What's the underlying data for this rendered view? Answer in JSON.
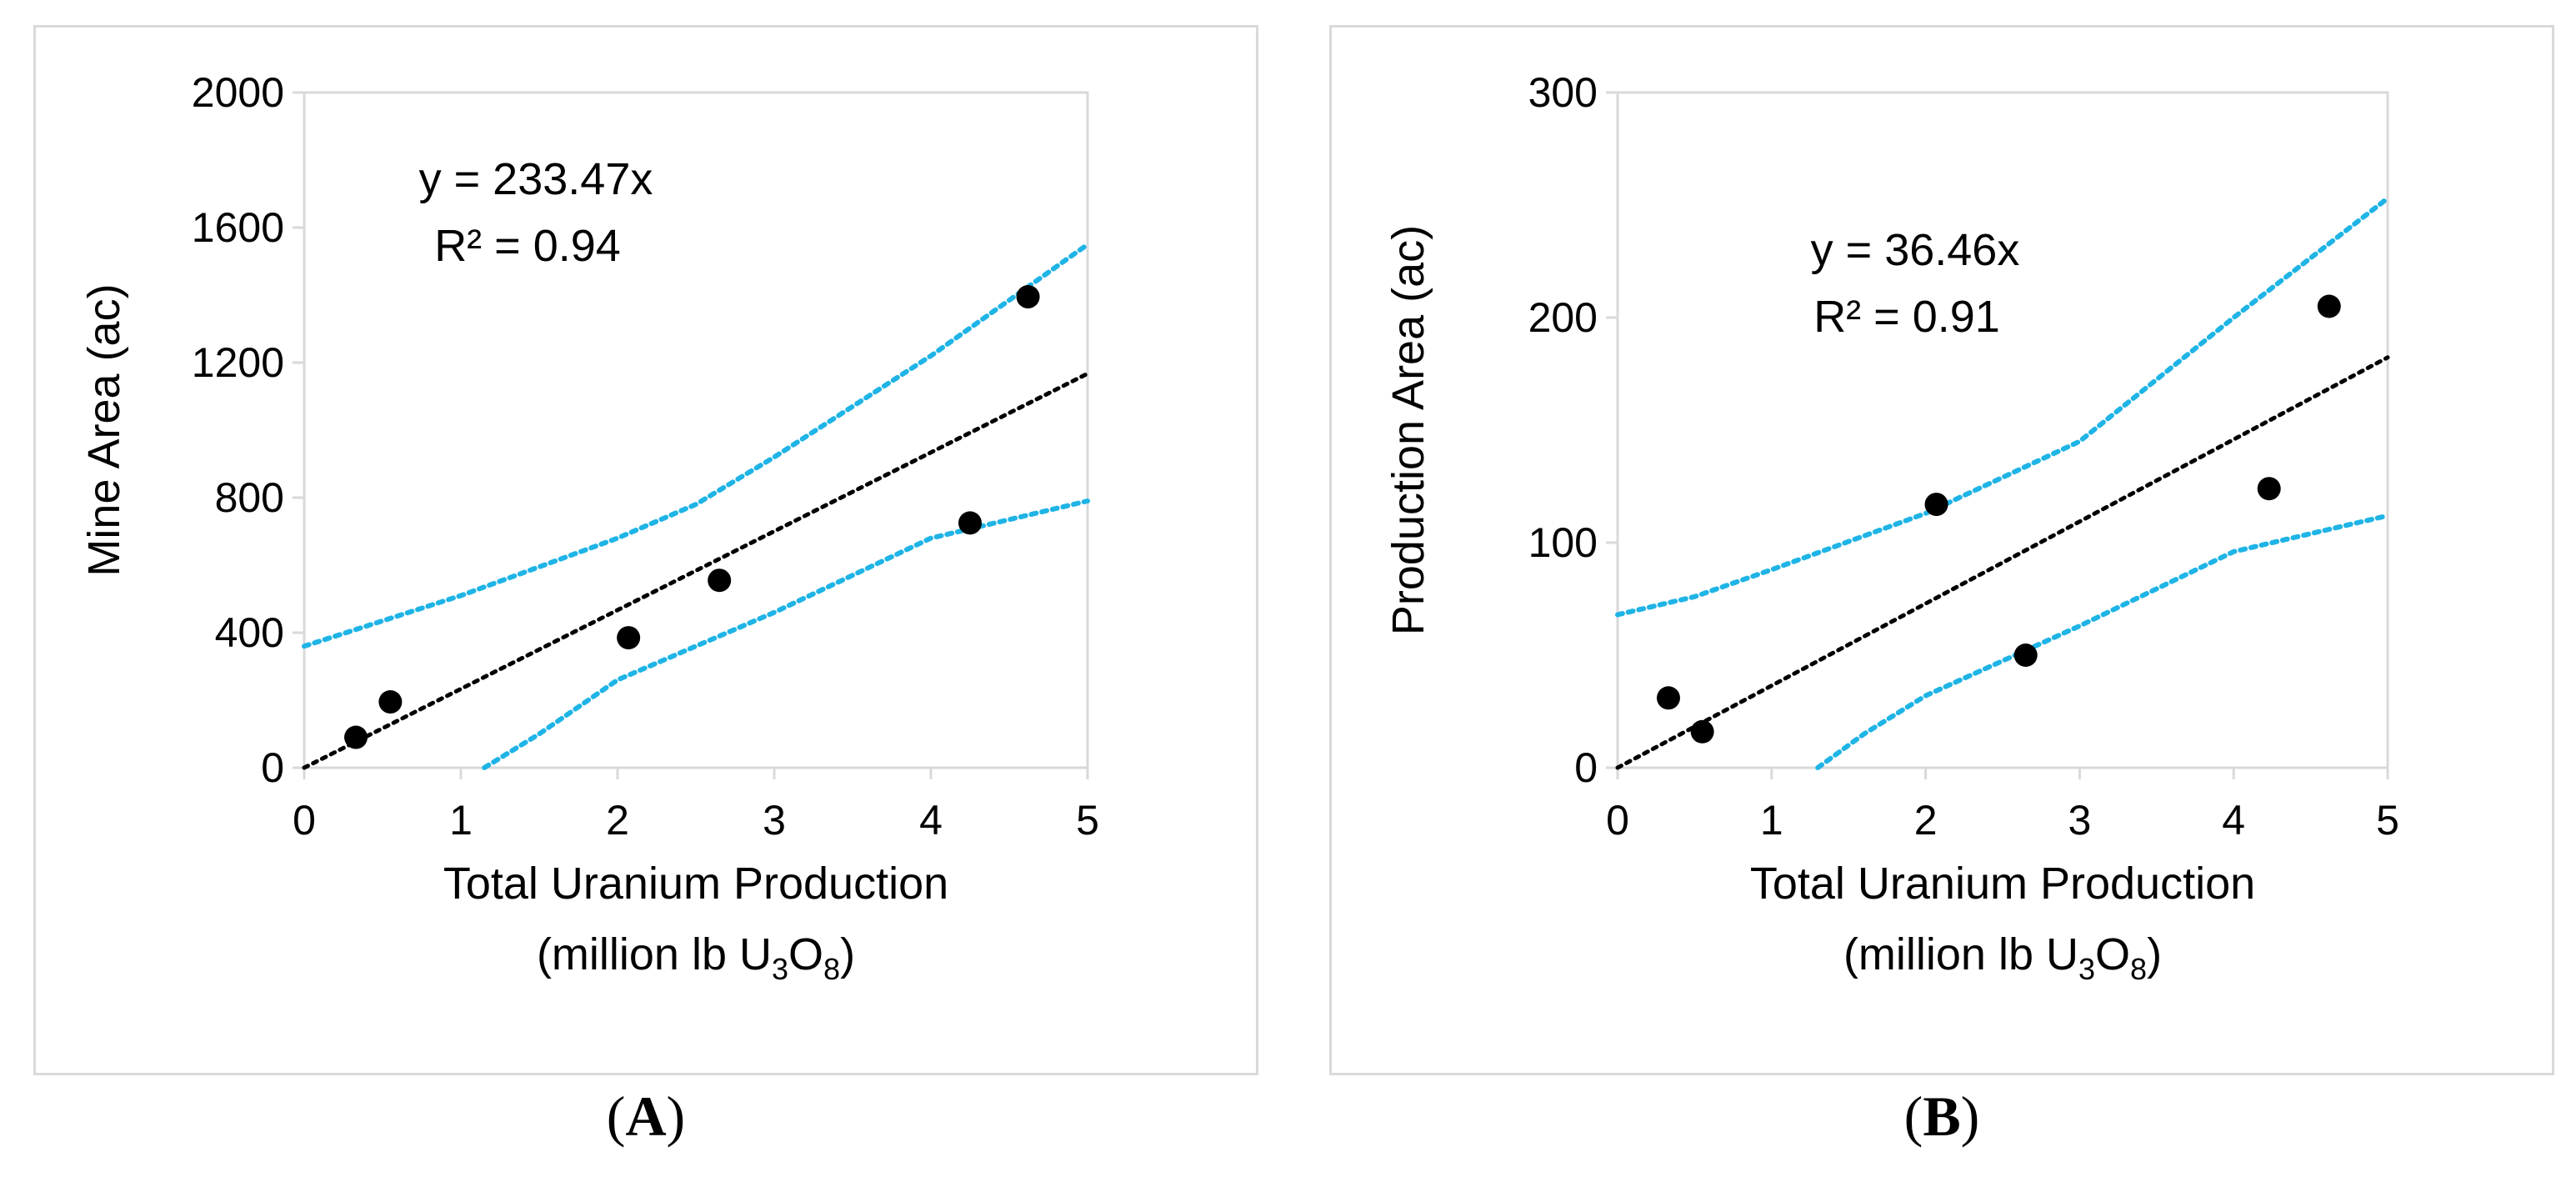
{
  "chart_data": [
    {
      "type": "scatter",
      "panel_label": "A",
      "xlabel": "Total Uranium Production",
      "xlabel_line2_prefix": "(million lb U",
      "xlabel_sub1": "3",
      "xlabel_mid": "O",
      "xlabel_sub2": "8",
      "xlabel_suffix": ")",
      "ylabel": "Mine Area (ac)",
      "xlim": [
        0,
        5
      ],
      "ylim": [
        0,
        2000
      ],
      "x_ticks": [
        0,
        1,
        2,
        3,
        4,
        5
      ],
      "y_ticks": [
        0,
        400,
        800,
        1200,
        1600,
        2000
      ],
      "points": [
        {
          "x": 0.33,
          "y": 90
        },
        {
          "x": 0.55,
          "y": 195
        },
        {
          "x": 2.07,
          "y": 385
        },
        {
          "x": 2.65,
          "y": 555
        },
        {
          "x": 4.25,
          "y": 725
        },
        {
          "x": 4.62,
          "y": 1395
        }
      ],
      "fit": {
        "slope": 233.47,
        "equation": "y = 233.47x",
        "r2": "R² = 0.94",
        "color": "#000000"
      },
      "upper_band": [
        [
          0,
          360
        ],
        [
          1,
          510
        ],
        [
          2,
          680
        ],
        [
          2.5,
          780
        ],
        [
          3,
          920
        ],
        [
          4,
          1220
        ],
        [
          5,
          1550
        ]
      ],
      "lower_band": [
        [
          1.15,
          0
        ],
        [
          1.5,
          100
        ],
        [
          2,
          260
        ],
        [
          3,
          460
        ],
        [
          4,
          680
        ],
        [
          5,
          790
        ]
      ],
      "band_color": "#1fb4e6"
    },
    {
      "type": "scatter",
      "panel_label": "B",
      "xlabel": "Total Uranium Production",
      "xlabel_line2_prefix": "(million lb U",
      "xlabel_sub1": "3",
      "xlabel_mid": "O",
      "xlabel_sub2": "8",
      "xlabel_suffix": ")",
      "ylabel": "Production Area (ac)",
      "xlim": [
        0,
        5
      ],
      "ylim": [
        0,
        300
      ],
      "x_ticks": [
        0,
        1,
        2,
        3,
        4,
        5
      ],
      "y_ticks": [
        0,
        100,
        200,
        300
      ],
      "points": [
        {
          "x": 0.33,
          "y": 31
        },
        {
          "x": 0.55,
          "y": 16
        },
        {
          "x": 2.07,
          "y": 117
        },
        {
          "x": 2.65,
          "y": 50
        },
        {
          "x": 4.23,
          "y": 124
        },
        {
          "x": 4.62,
          "y": 205
        }
      ],
      "fit": {
        "slope": 36.46,
        "equation": "y = 36.46x",
        "r2": "R² = 0.91",
        "color": "#000000"
      },
      "upper_band": [
        [
          0,
          68
        ],
        [
          0.5,
          76
        ],
        [
          1,
          88
        ],
        [
          2,
          113
        ],
        [
          3,
          145
        ],
        [
          4,
          200
        ],
        [
          5,
          253
        ]
      ],
      "lower_band": [
        [
          1.3,
          0
        ],
        [
          1.6,
          15
        ],
        [
          2,
          32
        ],
        [
          3,
          63
        ],
        [
          4,
          96
        ],
        [
          5,
          112
        ]
      ],
      "band_color": "#1fb4e6"
    }
  ]
}
